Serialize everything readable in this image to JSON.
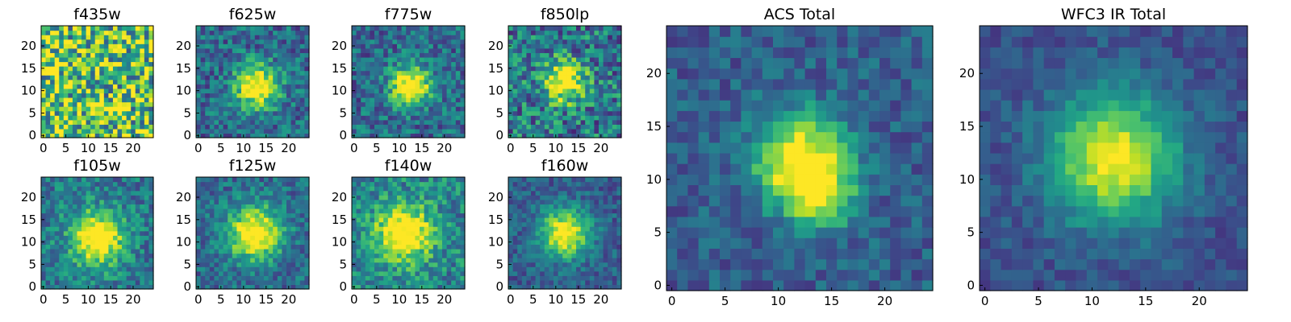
{
  "figure": {
    "description_type": "image-grid"
  },
  "chart_data": [
    {
      "type": "heatmap",
      "id": "f435w",
      "title": "f435w",
      "grid": [
        25,
        25
      ],
      "xlim": [
        -0.5,
        24.5
      ],
      "ylim": [
        -0.5,
        24.5
      ],
      "xticks": [
        "0",
        "5",
        "10",
        "15",
        "20"
      ],
      "yticks": [
        "0",
        "5",
        "10",
        "15",
        "20"
      ],
      "colormap": "viridis",
      "source_center": null,
      "source_sigma": null,
      "noise": 0.45,
      "base": 0.72
    },
    {
      "type": "heatmap",
      "id": "f625w",
      "title": "f625w",
      "grid": [
        25,
        25
      ],
      "xlim": [
        -0.5,
        24.5
      ],
      "ylim": [
        -0.5,
        24.5
      ],
      "xticks": [
        "0",
        "5",
        "10",
        "15",
        "20"
      ],
      "yticks": [
        "0",
        "5",
        "10",
        "15",
        "20"
      ],
      "colormap": "viridis",
      "source_center": [
        13,
        11
      ],
      "source_sigma": 3.4,
      "noise": 0.22,
      "base": 0.35
    },
    {
      "type": "heatmap",
      "id": "f775w",
      "title": "f775w",
      "grid": [
        25,
        25
      ],
      "xlim": [
        -0.5,
        24.5
      ],
      "ylim": [
        -0.5,
        24.5
      ],
      "xticks": [
        "0",
        "5",
        "10",
        "15",
        "20"
      ],
      "yticks": [
        "0",
        "5",
        "10",
        "15",
        "20"
      ],
      "colormap": "viridis",
      "source_center": [
        12.5,
        11
      ],
      "source_sigma": 3.2,
      "noise": 0.22,
      "base": 0.35
    },
    {
      "type": "heatmap",
      "id": "f850lp",
      "title": "f850lp",
      "grid": [
        25,
        25
      ],
      "xlim": [
        -0.5,
        24.5
      ],
      "ylim": [
        -0.5,
        24.5
      ],
      "xticks": [
        "0",
        "5",
        "10",
        "15",
        "20"
      ],
      "yticks": [
        "0",
        "5",
        "10",
        "15",
        "20"
      ],
      "colormap": "viridis",
      "source_center": [
        12,
        12
      ],
      "source_sigma": 3.2,
      "noise": 0.3,
      "base": 0.4
    },
    {
      "type": "heatmap",
      "id": "f105w",
      "title": "f105w",
      "grid": [
        25,
        25
      ],
      "xlim": [
        -0.5,
        24.5
      ],
      "ylim": [
        -0.5,
        24.5
      ],
      "xticks": [
        "0",
        "5",
        "10",
        "15",
        "20"
      ],
      "yticks": [
        "0",
        "5",
        "10",
        "15",
        "20"
      ],
      "colormap": "viridis",
      "source_center": [
        12,
        11
      ],
      "source_sigma": 4.2,
      "noise": 0.2,
      "base": 0.4
    },
    {
      "type": "heatmap",
      "id": "f125w",
      "title": "f125w",
      "grid": [
        25,
        25
      ],
      "xlim": [
        -0.5,
        24.5
      ],
      "ylim": [
        -0.5,
        24.5
      ],
      "xticks": [
        "0",
        "5",
        "10",
        "15",
        "20"
      ],
      "yticks": [
        "0",
        "5",
        "10",
        "15",
        "20"
      ],
      "colormap": "viridis",
      "source_center": [
        12.5,
        12
      ],
      "source_sigma": 4.2,
      "noise": 0.18,
      "base": 0.35
    },
    {
      "type": "heatmap",
      "id": "f140w",
      "title": "f140w",
      "grid": [
        25,
        25
      ],
      "xlim": [
        -0.5,
        24.5
      ],
      "ylim": [
        -0.5,
        24.5
      ],
      "xticks": [
        "0",
        "5",
        "10",
        "15",
        "20"
      ],
      "yticks": [
        "0",
        "5",
        "10",
        "15",
        "20"
      ],
      "colormap": "viridis",
      "source_center": [
        11,
        12
      ],
      "source_sigma": 4.3,
      "noise": 0.22,
      "base": 0.45
    },
    {
      "type": "heatmap",
      "id": "f160w",
      "title": "f160w",
      "grid": [
        25,
        25
      ],
      "xlim": [
        -0.5,
        24.5
      ],
      "ylim": [
        -0.5,
        24.5
      ],
      "xticks": [
        "0",
        "5",
        "10",
        "15",
        "20"
      ],
      "yticks": [
        "0",
        "5",
        "10",
        "15",
        "20"
      ],
      "colormap": "viridis",
      "source_center": [
        12,
        12
      ],
      "source_sigma": 3.8,
      "noise": 0.15,
      "base": 0.3
    },
    {
      "type": "heatmap",
      "id": "acs-total",
      "title": "ACS Total",
      "grid": [
        25,
        25
      ],
      "xlim": [
        -0.5,
        24.5
      ],
      "ylim": [
        -0.5,
        24.5
      ],
      "xticks": [
        "0",
        "5",
        "10",
        "15",
        "20"
      ],
      "yticks": [
        "0",
        "5",
        "10",
        "15",
        "20"
      ],
      "colormap": "viridis",
      "source_center": [
        12,
        12
      ],
      "source_sigma": 3.0,
      "second_source": [
        14,
        8.5
      ],
      "noise": 0.14,
      "base": 0.3
    },
    {
      "type": "heatmap",
      "id": "wfc3-ir-total",
      "title": "WFC3 IR Total",
      "grid": [
        25,
        25
      ],
      "xlim": [
        -0.5,
        24.5
      ],
      "ylim": [
        -0.5,
        24.5
      ],
      "xticks": [
        "0",
        "5",
        "10",
        "15",
        "20"
      ],
      "yticks": [
        "0",
        "5",
        "10",
        "15",
        "20"
      ],
      "colormap": "viridis",
      "source_center": [
        12,
        12
      ],
      "source_sigma": 4.2,
      "noise": 0.1,
      "base": 0.25
    }
  ]
}
